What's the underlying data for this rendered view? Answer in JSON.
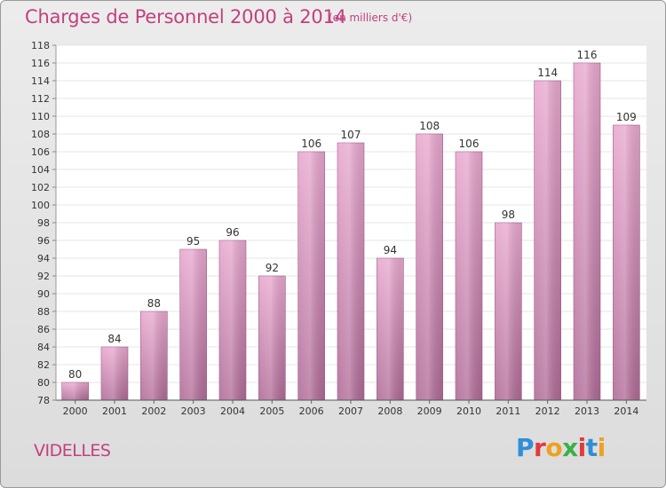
{
  "header": {
    "title": "Charges de Personnel 2000 à 2014",
    "subtitle": "(en milliers d'€)"
  },
  "footer": {
    "town": "VIDELLES",
    "logo_text": "Proxiti",
    "logo_colors": [
      "#2f8fd8",
      "#e23a3a",
      "#f0a020",
      "#3bb04a",
      "#e23a3a",
      "#2f8fd8",
      "#f0a020"
    ]
  },
  "colors": {
    "accent": "#c2407e",
    "bar_top": "#e9a8cf",
    "bar_bottom": "#b06b97"
  },
  "chart_data": {
    "type": "bar",
    "title": "Charges de Personnel 2000 à 2014",
    "subtitle": "(en milliers d'€)",
    "xlabel": "",
    "ylabel": "",
    "categories": [
      "2000",
      "2001",
      "2002",
      "2003",
      "2004",
      "2005",
      "2006",
      "2007",
      "2008",
      "2009",
      "2010",
      "2011",
      "2012",
      "2013",
      "2014"
    ],
    "values": [
      80,
      84,
      88,
      95,
      96,
      92,
      106,
      107,
      94,
      108,
      106,
      98,
      114,
      116,
      109
    ],
    "ylim": [
      78,
      118
    ],
    "yticks": [
      78,
      80,
      82,
      84,
      86,
      88,
      90,
      92,
      94,
      96,
      98,
      100,
      102,
      104,
      106,
      108,
      110,
      112,
      114,
      116,
      118
    ],
    "grid": true,
    "legend": "none"
  }
}
